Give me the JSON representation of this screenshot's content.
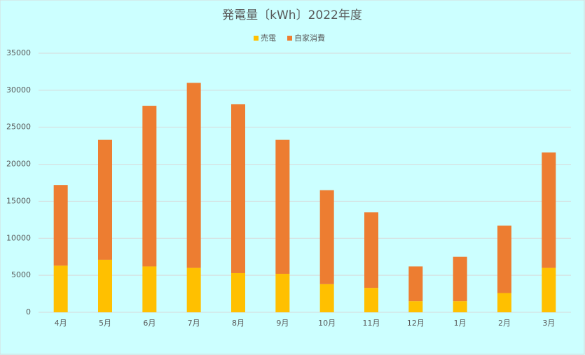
{
  "chart_data": {
    "type": "stacked_bar",
    "title": "発電量〔kWh〕2022年度",
    "categories": [
      "4月",
      "5月",
      "6月",
      "7月",
      "8月",
      "9月",
      "10月",
      "11月",
      "12月",
      "1月",
      "2月",
      "3月"
    ],
    "series": [
      {
        "name": "売電",
        "color": "#ffc000",
        "values": [
          6300,
          7100,
          6200,
          6000,
          5300,
          5200,
          3800,
          3300,
          1500,
          1500,
          2600,
          6000
        ]
      },
      {
        "name": "自家消費",
        "color": "#ed7d31",
        "values": [
          10900,
          16200,
          21700,
          25000,
          22800,
          18100,
          12700,
          10200,
          4700,
          6000,
          9100,
          15600
        ]
      }
    ],
    "ylim": [
      0,
      35000
    ],
    "yticks": [
      0,
      5000,
      10000,
      15000,
      20000,
      25000,
      30000,
      35000
    ],
    "grid": true,
    "legend": "top"
  }
}
